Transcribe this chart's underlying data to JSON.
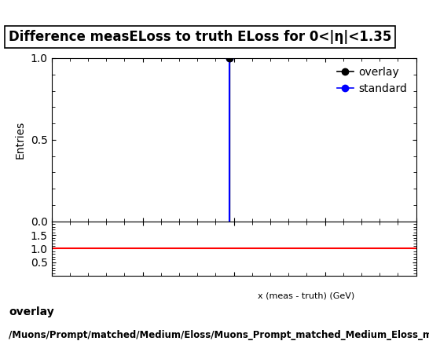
{
  "title": "Difference measELoss to truth ELoss for 0<|η|<1.35",
  "xlim": [
    -10,
    10
  ],
  "ylim_main": [
    0,
    1.0
  ],
  "ylim_ratio": [
    0,
    2.0
  ],
  "yticks_main": [
    0,
    0.5,
    1
  ],
  "yticks_ratio": [
    0.5,
    1,
    1.5
  ],
  "xticks": [
    -10,
    -5,
    0,
    5,
    10
  ],
  "ylabel_main": "Entries",
  "spike_x": -0.25,
  "spike_height": 1.0,
  "overlay_color": "#000000",
  "standard_color": "#0000ff",
  "ratio_color": "#ff0000",
  "legend_labels": [
    "overlay",
    "standard"
  ],
  "footer_text1": "overlay",
  "footer_text2": "/Muons/Prompt/matched/Medium/Eloss/Muons_Prompt_matched_Medium_Eloss_meas",
  "title_fontsize": 12,
  "axis_fontsize": 10,
  "tick_fontsize": 10,
  "legend_fontsize": 10,
  "footer_fontsize": 9
}
